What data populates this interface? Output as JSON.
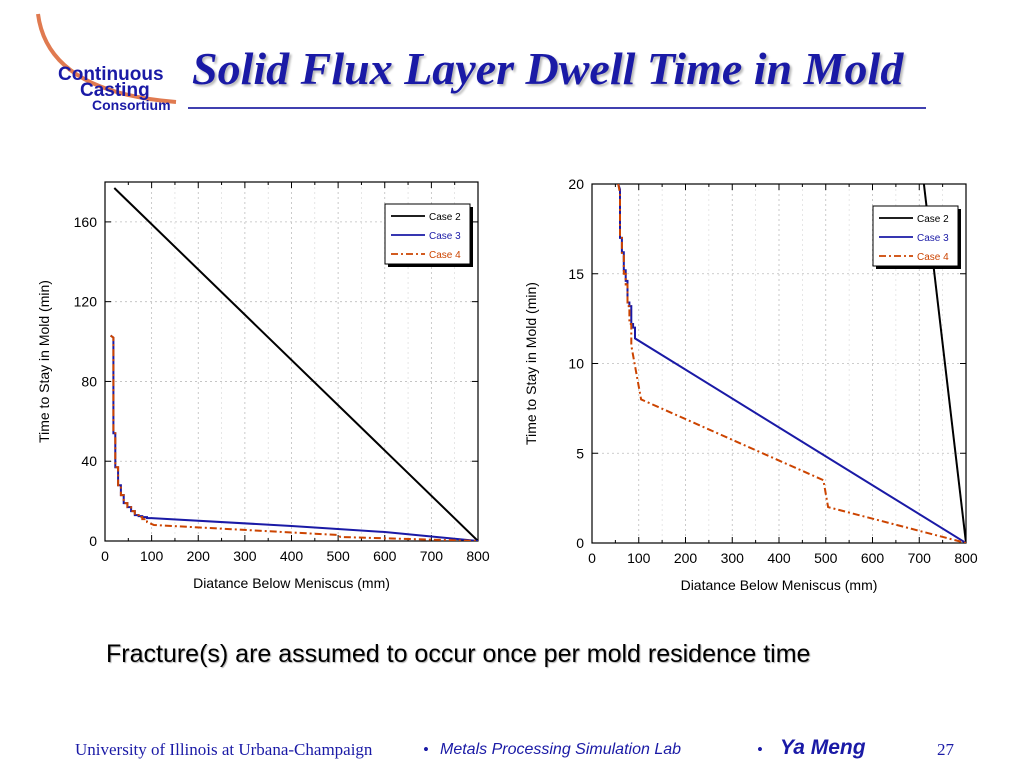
{
  "logo": {
    "line1": "Continuous",
    "line2": "Casting",
    "line3": "Consortium",
    "color": "#1a1aa6",
    "arc_color": "#e07a50"
  },
  "slide": {
    "title": "Solid Flux Layer Dwell Time in Mold",
    "caption": "Fracture(s) are assumed to occur once per mold residence time",
    "title_color": "#1a1aa6"
  },
  "footer": {
    "university": "University of Illinois at Urbana-Champaign",
    "bullet": "•",
    "lab": "Metals Processing Simulation Lab",
    "bullet2": "•",
    "author": "Ya Meng",
    "page": "27"
  },
  "chart_data": [
    {
      "type": "line",
      "xlabel": "Diatance Below Meniscus (mm)",
      "ylabel": "Time to Stay in Mold (min)",
      "xlim": [
        0,
        800
      ],
      "ylim": [
        0,
        180
      ],
      "xticks": [
        0,
        100,
        200,
        300,
        400,
        500,
        600,
        700,
        800
      ],
      "yticks": [
        0,
        40,
        80,
        120,
        160
      ],
      "grid": true,
      "legend_position": "top-right",
      "series": [
        {
          "name": "Case 2",
          "color": "#000000",
          "dash": "solid",
          "x": [
            20,
            800
          ],
          "y": [
            177,
            0
          ]
        },
        {
          "name": "Case 3",
          "color": "#1a1aa6",
          "dash": "solid",
          "x": [
            12,
            18,
            18,
            22,
            22,
            28,
            28,
            34,
            34,
            40,
            40,
            48,
            48,
            56,
            56,
            64,
            64,
            72,
            72,
            80,
            80,
            90,
            90,
            100,
            400,
            600,
            800
          ],
          "y": [
            103,
            102,
            54,
            54,
            37,
            37,
            28,
            28,
            23,
            23,
            19,
            19,
            17,
            17,
            15,
            15,
            13,
            13,
            12.5,
            12.5,
            12,
            12,
            11.5,
            11.5,
            7.5,
            4.5,
            0
          ]
        },
        {
          "name": "Case 4",
          "color": "#cc4400",
          "dash": "dash-dot",
          "x": [
            12,
            18,
            18,
            22,
            22,
            28,
            28,
            34,
            34,
            40,
            40,
            48,
            48,
            56,
            56,
            64,
            64,
            72,
            72,
            80,
            80,
            90,
            90,
            105,
            500,
            505,
            800
          ],
          "y": [
            103,
            102,
            54,
            54,
            37,
            37,
            28,
            28,
            23,
            23,
            19,
            19,
            17,
            17,
            15,
            15,
            13,
            13,
            12,
            12,
            11,
            11,
            9.5,
            8,
            3,
            2,
            0
          ]
        }
      ]
    },
    {
      "type": "line",
      "xlabel": "Diatance Below Meniscus (mm)",
      "ylabel": "Time to Stay in Mold (min)",
      "xlim": [
        0,
        800
      ],
      "ylim": [
        0,
        20
      ],
      "xticks": [
        0,
        100,
        200,
        300,
        400,
        500,
        600,
        700,
        800
      ],
      "yticks": [
        0,
        5,
        10,
        15,
        20
      ],
      "grid": true,
      "legend_position": "top-right",
      "series": [
        {
          "name": "Case 2",
          "color": "#000000",
          "dash": "solid",
          "x": [
            710,
            800
          ],
          "y": [
            20,
            0
          ]
        },
        {
          "name": "Case 3",
          "color": "#1a1aa6",
          "dash": "solid",
          "x": [
            56,
            60,
            60,
            64,
            64,
            68,
            68,
            72,
            72,
            76,
            76,
            80,
            80,
            84,
            84,
            88,
            88,
            92,
            92,
            800
          ],
          "y": [
            20,
            19.7,
            17,
            17,
            16.2,
            16.2,
            15.2,
            15.2,
            14.6,
            14.6,
            13.4,
            13.4,
            13.2,
            13.2,
            12.2,
            12.2,
            12,
            12,
            11.4,
            0
          ]
        },
        {
          "name": "Case 4",
          "color": "#cc4400",
          "dash": "dash-dot",
          "x": [
            56,
            60,
            60,
            64,
            64,
            68,
            68,
            72,
            72,
            76,
            76,
            80,
            80,
            84,
            84,
            105,
            495,
            505,
            800
          ],
          "y": [
            20,
            19.5,
            17,
            17,
            16,
            16,
            15,
            15,
            14.4,
            14.4,
            13.2,
            13.2,
            12.2,
            12.2,
            11,
            8,
            3.5,
            2,
            0
          ]
        }
      ]
    }
  ]
}
